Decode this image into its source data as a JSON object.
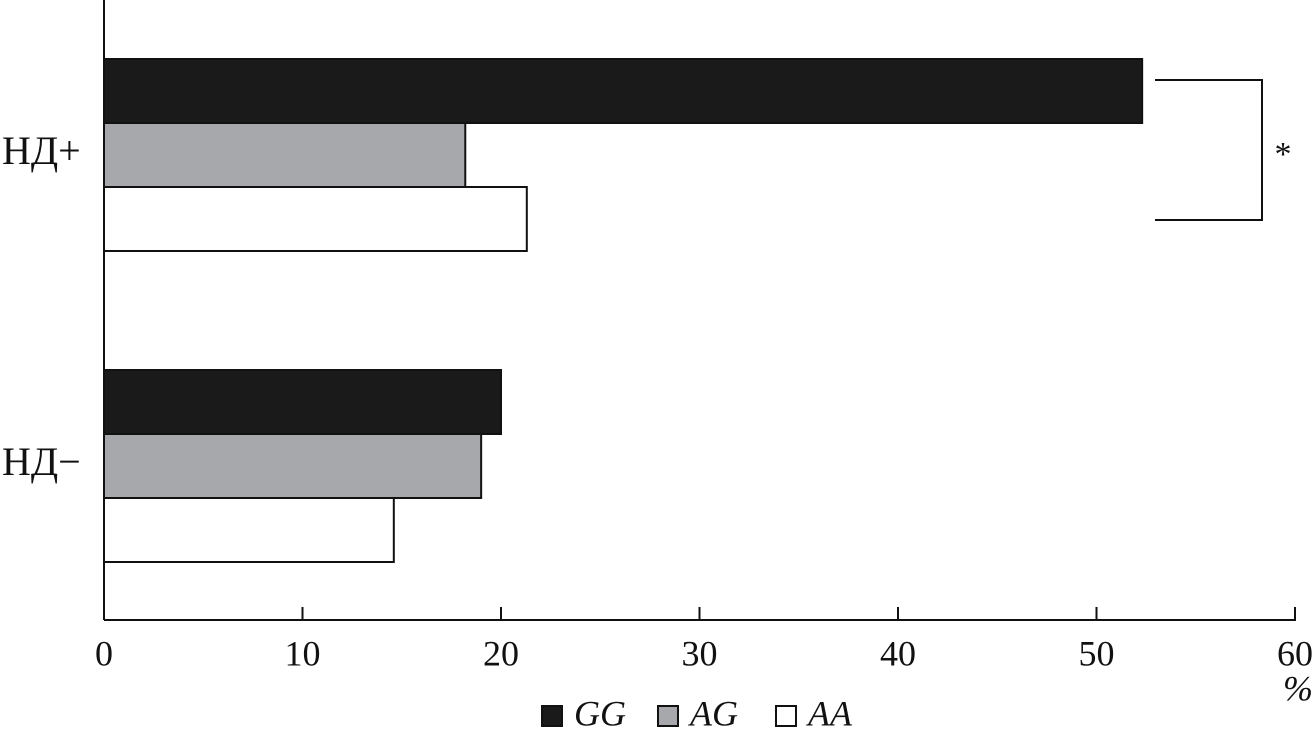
{
  "chart_data": {
    "type": "hbar",
    "categories": [
      "НД+",
      "НД−"
    ],
    "series": [
      {
        "name": "GG",
        "color": "#1a1a1a",
        "values": [
          52.3,
          20.0
        ]
      },
      {
        "name": "AG",
        "color": "#a7a8ab",
        "values": [
          18.2,
          19.0
        ]
      },
      {
        "name": "AA",
        "color": "#ffffff",
        "values": [
          21.3,
          14.6
        ]
      }
    ],
    "xlim": [
      0,
      60
    ],
    "xticks": [
      0,
      10,
      20,
      30,
      40,
      50,
      60
    ],
    "x_axis_label": "%",
    "annotation": "*",
    "legend": "bottom"
  }
}
